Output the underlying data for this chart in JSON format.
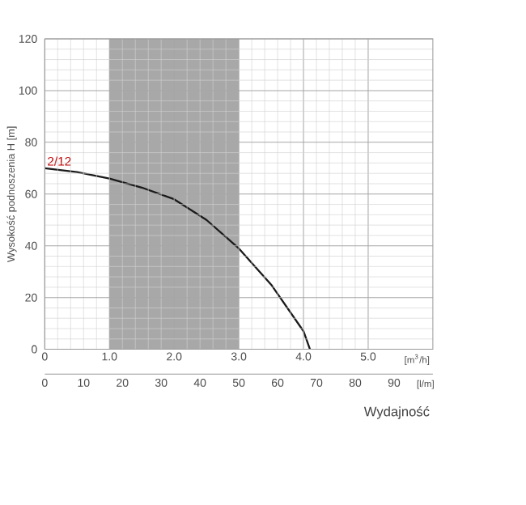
{
  "chart_data": {
    "type": "line",
    "xlabel": "Wydajność",
    "ylabel": "Wysokość podnoszenia H [m]",
    "annotations": [
      "[m$^{3}$/h]",
      "[l/m]"
    ],
    "x": [
      0,
      0.5,
      1.0,
      1.5,
      2.0,
      2.5,
      3.0,
      3.5,
      4.0,
      4.1
    ],
    "series": [
      {
        "name": "2/12",
        "color": "#1a1a1a",
        "values": [
          70,
          68.5,
          66,
          62.5,
          58,
          50,
          39,
          25,
          7,
          0
        ]
      }
    ],
    "xlim": [
      0,
      6
    ],
    "xticks": [
      0,
      {
        "value": 1,
        "label": "1.0"
      },
      {
        "value": 2,
        "label": "2.0"
      },
      {
        "value": 3,
        "label": "3.0"
      },
      {
        "value": 4,
        "label": "4.0"
      },
      {
        "value": 5,
        "label": "5.0"
      }
    ],
    "x2lim": [
      0,
      100
    ],
    "x2ticks": [
      0,
      10,
      20,
      30,
      40,
      50,
      60,
      70,
      80,
      90
    ],
    "ylim": [
      0,
      120
    ],
    "yticks": [
      0,
      20,
      40,
      60,
      80,
      100,
      120
    ],
    "bands": [
      {
        "axis": "x",
        "from": 1.0,
        "to": 3.0,
        "color": "#a8a8a8"
      }
    ],
    "grid": true,
    "marker": "none",
    "line_style": "solid"
  }
}
